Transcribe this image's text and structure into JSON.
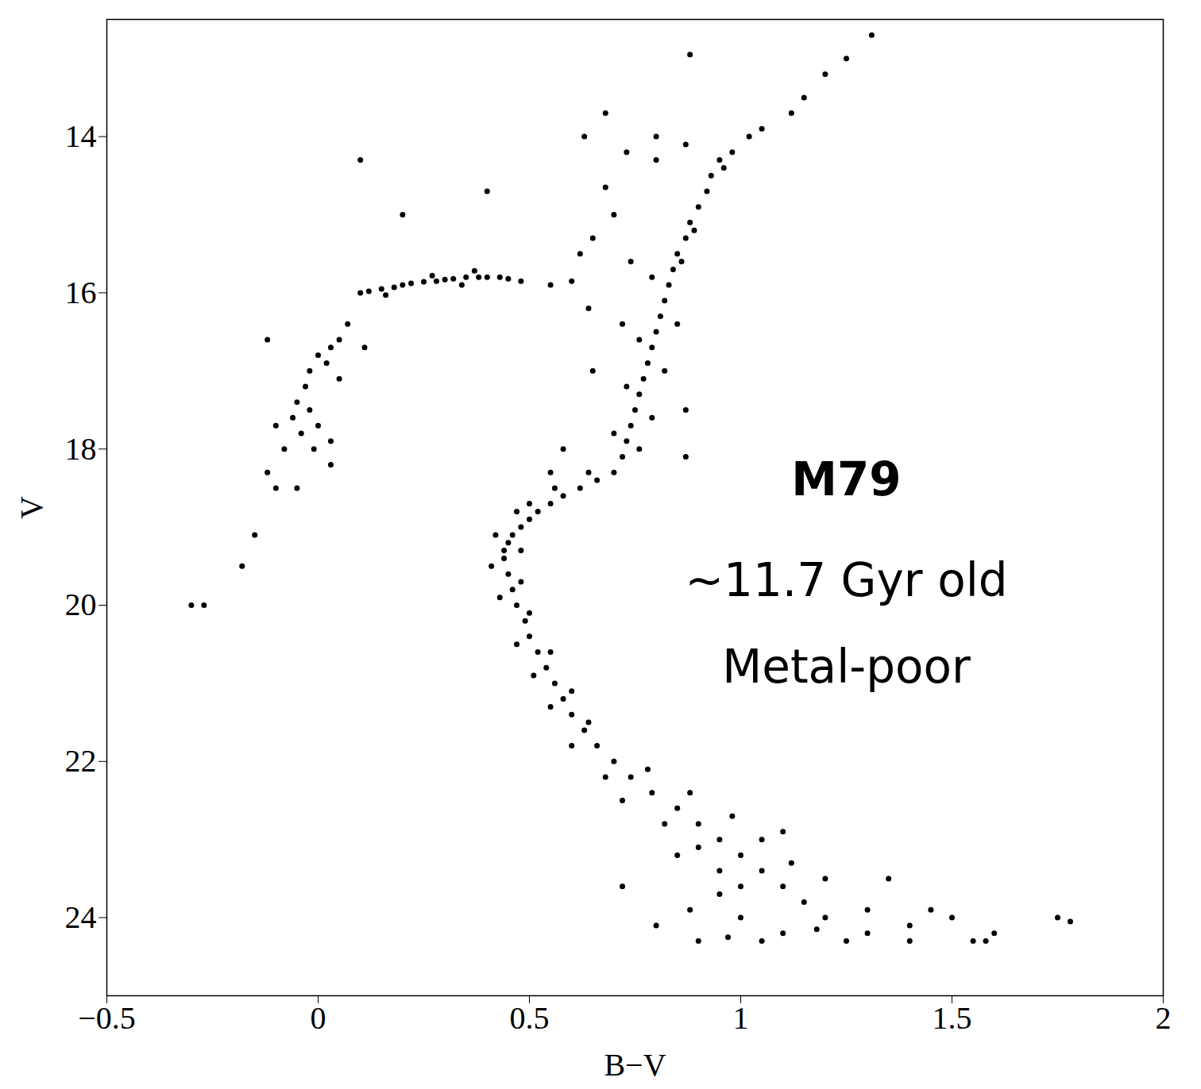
{
  "chart_data": {
    "type": "scatter",
    "x_label": "B−V",
    "y_label": "V",
    "annotations": [
      "M79",
      "~11.7 Gyr old",
      "Metal-poor"
    ],
    "color": "#000000",
    "marker": "dot",
    "grid": false,
    "xlim": [
      -0.5,
      2
    ],
    "ylim": [
      25,
      12.5
    ],
    "xticks": [
      {
        "value": -0.5,
        "label": "−0.5"
      },
      0,
      0.5,
      1,
      1.5,
      2
    ],
    "yticks": [
      14,
      16,
      18,
      20,
      22,
      24
    ],
    "x": [
      1.31,
      1.25,
      1.2,
      1.15,
      1.12,
      1.05,
      1.02,
      0.98,
      0.95,
      0.93,
      0.92,
      0.9,
      0.88,
      0.87,
      0.85,
      0.84,
      0.83,
      0.82,
      0.81,
      0.8,
      0.79,
      0.78,
      0.77,
      0.76,
      0.75,
      0.74,
      0.73,
      0.72,
      0.7,
      0.66,
      0.62,
      0.58,
      0.55,
      0.52,
      0.5,
      0.48,
      0.46,
      0.45,
      0.44,
      0.44,
      0.45,
      0.46,
      0.47,
      0.49,
      0.5,
      0.52,
      0.54,
      0.56,
      0.58,
      0.6,
      0.63,
      0.66,
      0.7,
      0.74,
      0.79,
      0.85,
      0.9,
      0.95,
      1.0,
      1.05,
      1.1,
      1.15,
      1.2,
      1.3,
      1.4,
      1.55,
      0.96,
      0.89,
      0.86,
      0.79,
      0.85,
      0.76,
      0.82,
      0.73,
      0.79,
      0.7,
      0.76,
      0.64,
      0.56,
      0.5,
      0.47,
      0.42,
      0.48,
      0.41,
      0.48,
      0.43,
      0.5,
      0.47,
      0.55,
      0.51,
      0.6,
      0.55,
      0.64,
      0.6,
      0.68,
      0.78,
      0.72,
      0.88,
      0.82,
      0.98,
      0.9,
      1.05,
      0.95,
      1.12,
      1.0,
      1.2,
      0.8,
      0.9,
      1.0,
      1.1,
      0.95,
      1.3,
      1.45,
      1.5,
      1.35,
      1.4,
      0.85,
      1.1,
      0.72,
      1.25,
      1.05,
      1.6,
      1.58,
      0.97,
      1.18,
      0.88,
      0.1,
      0.12,
      0.15,
      0.18,
      0.2,
      0.22,
      0.25,
      0.28,
      0.3,
      0.32,
      0.35,
      0.38,
      0.4,
      0.43,
      0.45,
      0.48,
      0.55,
      0.6,
      0.16,
      0.27,
      0.34,
      0.37,
      0.07,
      0.05,
      0.03,
      0.0,
      -0.02,
      -0.03,
      0.02,
      0.05,
      -0.05,
      -0.02,
      0.0,
      -0.04,
      -0.01,
      0.03,
      -0.06,
      -0.1,
      -0.08,
      -0.12,
      -0.05,
      -0.1,
      -0.15,
      -0.18,
      -0.3,
      -0.27,
      0.11,
      -0.12,
      0.03,
      0.1,
      0.4,
      0.2,
      0.68,
      0.63,
      0.73,
      0.8,
      0.87,
      0.8,
      0.68,
      0.7,
      0.65,
      0.62,
      0.74,
      0.88,
      1.75,
      1.78,
      0.58,
      0.55,
      0.65,
      0.87,
      0.87,
      0.72,
      0.64
    ],
    "values": [
      12.7,
      13.0,
      13.2,
      13.5,
      13.7,
      13.9,
      14.0,
      14.2,
      14.3,
      14.5,
      14.7,
      14.9,
      15.1,
      15.3,
      15.5,
      15.7,
      15.9,
      16.1,
      16.3,
      16.5,
      16.7,
      16.9,
      17.1,
      17.3,
      17.5,
      17.7,
      17.9,
      18.1,
      18.3,
      18.4,
      18.5,
      18.6,
      18.7,
      18.8,
      18.9,
      19.0,
      19.1,
      19.2,
      19.3,
      19.4,
      19.6,
      19.8,
      20.0,
      20.2,
      20.4,
      20.6,
      20.8,
      21.0,
      21.2,
      21.4,
      21.6,
      21.8,
      22.0,
      22.2,
      22.4,
      22.6,
      22.8,
      23.0,
      23.2,
      23.4,
      23.6,
      23.8,
      24.0,
      24.2,
      24.3,
      24.3,
      14.4,
      15.2,
      15.6,
      15.8,
      16.4,
      16.6,
      17.0,
      17.2,
      17.6,
      17.8,
      18.0,
      18.3,
      18.5,
      18.7,
      18.8,
      19.1,
      19.3,
      19.5,
      19.7,
      19.9,
      20.1,
      20.5,
      20.6,
      20.9,
      21.1,
      21.3,
      21.5,
      21.8,
      22.2,
      22.1,
      22.5,
      22.4,
      22.8,
      22.7,
      23.1,
      23.0,
      23.4,
      23.3,
      23.6,
      23.5,
      24.1,
      24.3,
      24.0,
      24.2,
      23.7,
      23.9,
      23.9,
      24.0,
      23.5,
      24.1,
      23.2,
      22.9,
      23.6,
      24.3,
      24.3,
      24.2,
      24.3,
      24.25,
      24.15,
      23.9,
      16.0,
      15.98,
      15.95,
      15.93,
      15.9,
      15.88,
      15.86,
      15.85,
      15.83,
      15.82,
      15.8,
      15.8,
      15.8,
      15.8,
      15.82,
      15.85,
      15.9,
      15.85,
      16.03,
      15.78,
      15.9,
      15.72,
      16.4,
      16.6,
      16.7,
      16.8,
      17.0,
      17.2,
      16.9,
      17.1,
      17.4,
      17.5,
      17.7,
      17.8,
      18.0,
      17.9,
      17.6,
      17.7,
      18.0,
      18.3,
      18.5,
      18.5,
      19.1,
      19.5,
      20.0,
      20.0,
      16.7,
      16.6,
      18.2,
      14.3,
      14.7,
      15.0,
      13.7,
      14.0,
      14.2,
      14.0,
      14.1,
      14.3,
      14.65,
      15.0,
      15.3,
      15.5,
      15.6,
      12.95,
      24.0,
      24.05,
      18.0,
      18.3,
      17.0,
      17.5,
      18.1,
      16.4,
      16.2
    ]
  }
}
